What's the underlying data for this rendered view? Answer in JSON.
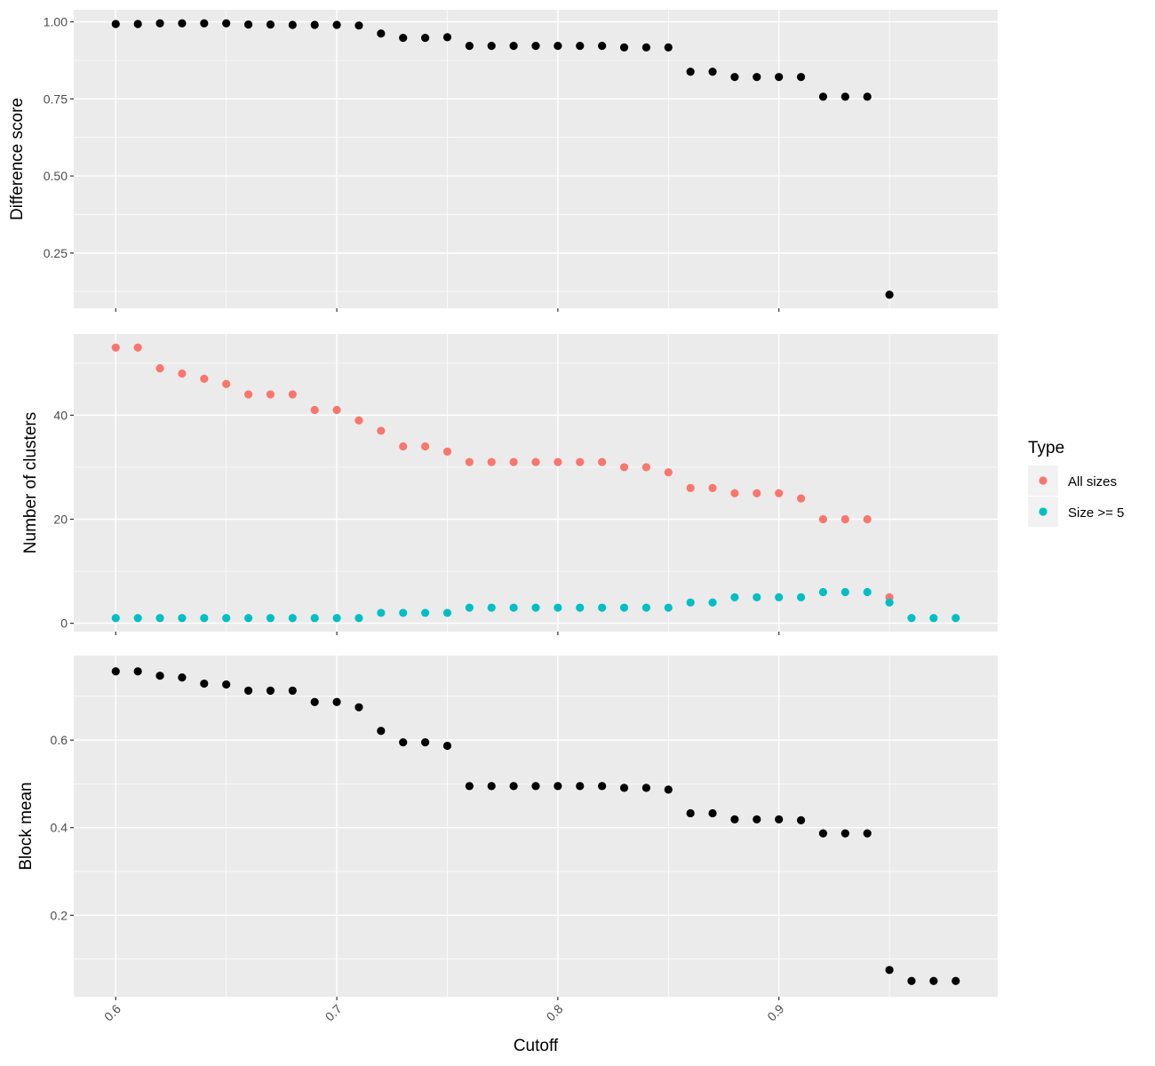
{
  "chart_data": {
    "type": "scatter",
    "xlabel": "Cutoff",
    "x_ticks": [
      "0.6",
      "0.7",
      "0.8",
      "0.9"
    ],
    "xlim": [
      0.581,
      0.999
    ],
    "legend": {
      "title": "Type",
      "position": "right",
      "entries": [
        {
          "label": "All sizes",
          "color": "#F8766D"
        },
        {
          "label": "Size >= 5",
          "color": "#00BFC4"
        }
      ]
    },
    "panels": [
      {
        "ylabel": "Difference score",
        "ylim": [
          0.071,
          1.039
        ],
        "y_ticks": [
          "0.25",
          "0.50",
          "0.75",
          "1.00"
        ],
        "series": [
          {
            "color": "#000000",
            "points": [
              [
                0.6,
                0.993
              ],
              [
                0.61,
                0.993
              ],
              [
                0.62,
                0.995
              ],
              [
                0.63,
                0.995
              ],
              [
                0.64,
                0.995
              ],
              [
                0.65,
                0.995
              ],
              [
                0.66,
                0.991
              ],
              [
                0.67,
                0.991
              ],
              [
                0.68,
                0.99
              ],
              [
                0.69,
                0.99
              ],
              [
                0.7,
                0.99
              ],
              [
                0.71,
                0.988
              ],
              [
                0.72,
                0.962
              ],
              [
                0.73,
                0.948
              ],
              [
                0.74,
                0.948
              ],
              [
                0.75,
                0.95
              ],
              [
                0.76,
                0.922
              ],
              [
                0.77,
                0.922
              ],
              [
                0.78,
                0.922
              ],
              [
                0.79,
                0.922
              ],
              [
                0.8,
                0.922
              ],
              [
                0.81,
                0.922
              ],
              [
                0.82,
                0.922
              ],
              [
                0.83,
                0.917
              ],
              [
                0.84,
                0.917
              ],
              [
                0.85,
                0.917
              ],
              [
                0.86,
                0.838
              ],
              [
                0.87,
                0.838
              ],
              [
                0.88,
                0.821
              ],
              [
                0.89,
                0.821
              ],
              [
                0.9,
                0.821
              ],
              [
                0.91,
                0.821
              ],
              [
                0.92,
                0.757
              ],
              [
                0.93,
                0.757
              ],
              [
                0.94,
                0.757
              ],
              [
                0.95,
                0.115
              ]
            ]
          }
        ]
      },
      {
        "ylabel": "Number of clusters",
        "ylim": [
          -1.6,
          55.6
        ],
        "y_ticks": [
          "0",
          "20",
          "40"
        ],
        "series": [
          {
            "name": "All sizes",
            "color": "#F8766D",
            "points": [
              [
                0.6,
                53
              ],
              [
                0.61,
                53
              ],
              [
                0.62,
                49
              ],
              [
                0.63,
                48
              ],
              [
                0.64,
                47
              ],
              [
                0.65,
                46
              ],
              [
                0.66,
                44
              ],
              [
                0.67,
                44
              ],
              [
                0.68,
                44
              ],
              [
                0.69,
                41
              ],
              [
                0.7,
                41
              ],
              [
                0.71,
                39
              ],
              [
                0.72,
                37
              ],
              [
                0.73,
                34
              ],
              [
                0.74,
                34
              ],
              [
                0.75,
                33
              ],
              [
                0.76,
                31
              ],
              [
                0.77,
                31
              ],
              [
                0.78,
                31
              ],
              [
                0.79,
                31
              ],
              [
                0.8,
                31
              ],
              [
                0.81,
                31
              ],
              [
                0.82,
                31
              ],
              [
                0.83,
                30
              ],
              [
                0.84,
                30
              ],
              [
                0.85,
                29
              ],
              [
                0.86,
                26
              ],
              [
                0.87,
                26
              ],
              [
                0.88,
                25
              ],
              [
                0.89,
                25
              ],
              [
                0.9,
                25
              ],
              [
                0.91,
                24
              ],
              [
                0.92,
                20
              ],
              [
                0.93,
                20
              ],
              [
                0.94,
                20
              ],
              [
                0.95,
                5
              ]
            ]
          },
          {
            "name": "Size >= 5",
            "color": "#00BFC4",
            "points": [
              [
                0.6,
                1
              ],
              [
                0.61,
                1
              ],
              [
                0.62,
                1
              ],
              [
                0.63,
                1
              ],
              [
                0.64,
                1
              ],
              [
                0.65,
                1
              ],
              [
                0.66,
                1
              ],
              [
                0.67,
                1
              ],
              [
                0.68,
                1
              ],
              [
                0.69,
                1
              ],
              [
                0.7,
                1
              ],
              [
                0.71,
                1
              ],
              [
                0.72,
                2
              ],
              [
                0.73,
                2
              ],
              [
                0.74,
                2
              ],
              [
                0.75,
                2
              ],
              [
                0.76,
                3
              ],
              [
                0.77,
                3
              ],
              [
                0.78,
                3
              ],
              [
                0.79,
                3
              ],
              [
                0.8,
                3
              ],
              [
                0.81,
                3
              ],
              [
                0.82,
                3
              ],
              [
                0.83,
                3
              ],
              [
                0.84,
                3
              ],
              [
                0.85,
                3
              ],
              [
                0.86,
                4
              ],
              [
                0.87,
                4
              ],
              [
                0.88,
                5
              ],
              [
                0.89,
                5
              ],
              [
                0.9,
                5
              ],
              [
                0.91,
                5
              ],
              [
                0.92,
                6
              ],
              [
                0.93,
                6
              ],
              [
                0.94,
                6
              ],
              [
                0.95,
                4
              ],
              [
                0.96,
                1
              ],
              [
                0.97,
                1
              ],
              [
                0.98,
                1
              ]
            ]
          }
        ]
      },
      {
        "ylabel": "Block mean",
        "ylim": [
          0.014,
          0.793
        ],
        "y_ticks": [
          "0.2",
          "0.4",
          "0.6"
        ],
        "series": [
          {
            "color": "#000000",
            "points": [
              [
                0.6,
                0.757
              ],
              [
                0.61,
                0.757
              ],
              [
                0.62,
                0.747
              ],
              [
                0.63,
                0.743
              ],
              [
                0.64,
                0.729
              ],
              [
                0.65,
                0.727
              ],
              [
                0.66,
                0.713
              ],
              [
                0.67,
                0.713
              ],
              [
                0.68,
                0.713
              ],
              [
                0.69,
                0.687
              ],
              [
                0.7,
                0.687
              ],
              [
                0.71,
                0.675
              ],
              [
                0.72,
                0.621
              ],
              [
                0.73,
                0.595
              ],
              [
                0.74,
                0.595
              ],
              [
                0.75,
                0.587
              ],
              [
                0.76,
                0.495
              ],
              [
                0.77,
                0.495
              ],
              [
                0.78,
                0.495
              ],
              [
                0.79,
                0.495
              ],
              [
                0.8,
                0.495
              ],
              [
                0.81,
                0.495
              ],
              [
                0.82,
                0.495
              ],
              [
                0.83,
                0.491
              ],
              [
                0.84,
                0.491
              ],
              [
                0.85,
                0.487
              ],
              [
                0.86,
                0.433
              ],
              [
                0.87,
                0.433
              ],
              [
                0.88,
                0.419
              ],
              [
                0.89,
                0.419
              ],
              [
                0.9,
                0.419
              ],
              [
                0.91,
                0.417
              ],
              [
                0.92,
                0.387
              ],
              [
                0.93,
                0.387
              ],
              [
                0.94,
                0.387
              ],
              [
                0.95,
                0.075
              ],
              [
                0.96,
                0.05
              ],
              [
                0.97,
                0.05
              ],
              [
                0.98,
                0.05
              ]
            ]
          }
        ]
      }
    ]
  }
}
